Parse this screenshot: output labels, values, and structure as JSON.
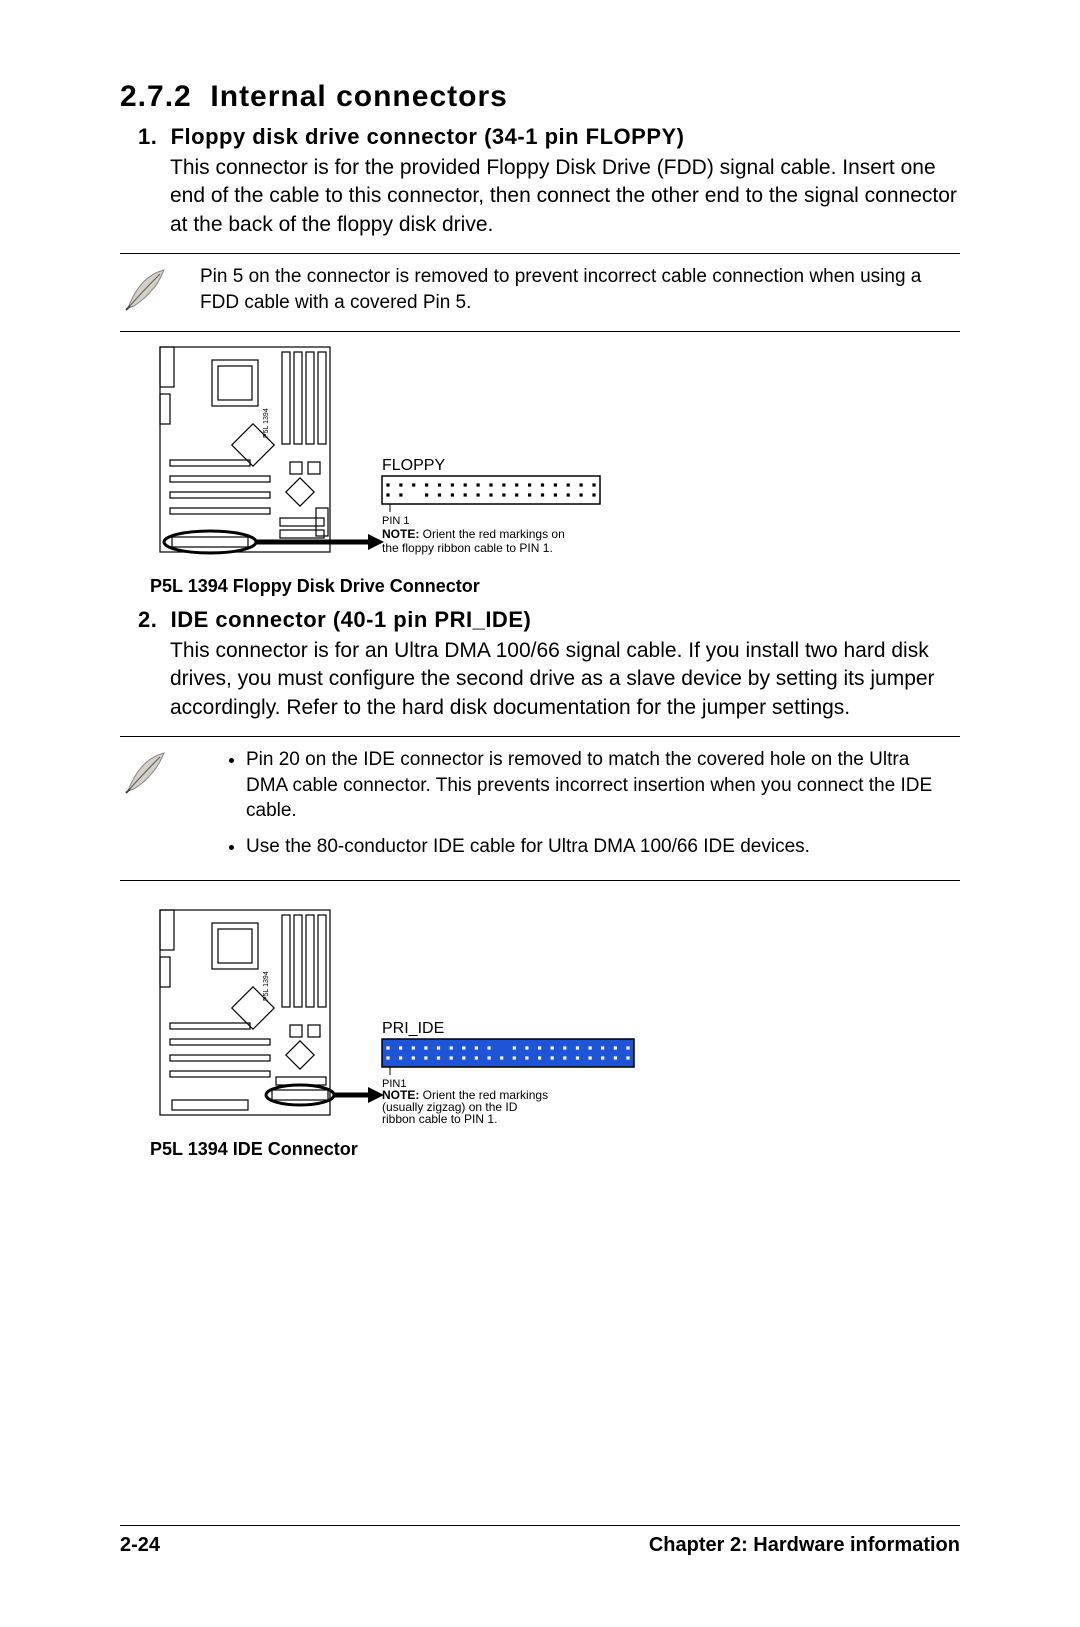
{
  "section": {
    "number": "2.7.2",
    "title": "Internal connectors"
  },
  "items": [
    {
      "num": "1.",
      "heading": "Floppy disk drive connector (34-1 pin FLOPPY)",
      "body": "This connector is for the provided Floppy Disk Drive (FDD) signal cable. Insert one end of the cable to this connector, then connect the other end to the signal connector at the back of the floppy disk drive.",
      "note": "Pin 5 on the connector is removed to prevent incorrect cable connection when using a FDD cable with a covered Pin 5.",
      "diagram": {
        "mobo_label": "P5L 1394",
        "conn_label": "FLOPPY",
        "pin_label": "PIN 1",
        "tiny_note_prefix": "NOTE:",
        "tiny_note": "Orient the red markings on the floppy ribbon cable to PIN 1.",
        "caption": "P5L 1394 Floppy Disk Drive Connector",
        "conn_fill": "#ffffff",
        "conn_dot_fill": "#000000",
        "pins_per_row": 17,
        "missing_pin_row": 1,
        "missing_pin_index": 2
      }
    },
    {
      "num": "2.",
      "heading": "IDE connector (40-1 pin PRI_IDE)",
      "body": "This connector is for an Ultra DMA 100/66 signal cable. If you install two hard disk drives, you must configure the second drive as a slave device by setting its jumper accordingly. Refer to the hard disk documentation for the jumper settings.",
      "note_bullets": [
        "Pin 20 on the IDE connector is removed to match the covered hole on the Ultra DMA cable connector. This prevents incorrect insertion when you connect the IDE cable.",
        "Use the 80-conductor IDE cable for Ultra DMA 100/66 IDE devices."
      ],
      "diagram": {
        "mobo_label": "P5L 1394",
        "conn_label": "PRI_IDE",
        "pin_label": "PIN1",
        "tiny_note_prefix": "NOTE:",
        "tiny_note": "Orient the red markings (usually zigzag) on the ID ribbon cable to PIN 1.",
        "caption": "P5L 1394 IDE Connector",
        "conn_fill": "#1e55d6",
        "conn_dot_fill": "#ffffff",
        "pins_per_row": 20,
        "missing_pin_row": 0,
        "missing_pin_index": 9
      }
    }
  ],
  "footer": {
    "page": "2-24",
    "chapter": "Chapter 2: Hardware information"
  },
  "colors": {
    "text": "#000000",
    "background": "#ffffff",
    "diagram_stroke": "#000000",
    "ide_blue": "#1e55d6"
  }
}
